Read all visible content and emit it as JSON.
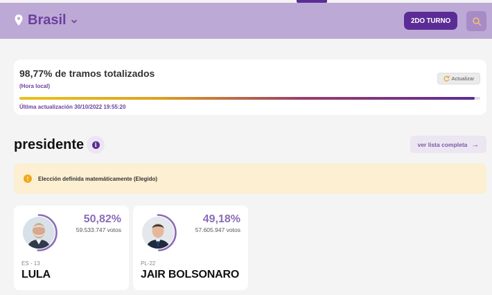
{
  "header": {
    "location": "Brasil",
    "turno_button": "2DO TURNO",
    "icons": {
      "location": "location-pin-icon",
      "dropdown": "chevron-down-icon",
      "search": "search-icon"
    }
  },
  "progress_card": {
    "title": "98,77% de tramos totalizados",
    "subtitle": "(Hora local)",
    "refresh_label": "Actualizar",
    "progress_fraction": 0.9877,
    "last_update": "Última actualización 30/10/2022 19:55:20"
  },
  "section": {
    "title": "presidente",
    "info_glyph": "i",
    "full_list_label": "ver lista completa",
    "full_list_arrow": "→"
  },
  "alert": {
    "glyph": "!",
    "text": "Elección definida matemáticamente (Elegido)"
  },
  "candidates": [
    {
      "percent": "50,82%",
      "percent_value": 50.82,
      "votes": "59.533.747 votos",
      "party": "ES - 13",
      "name": "LULA"
    },
    {
      "percent": "49,18%",
      "percent_value": 49.18,
      "votes": "57.605.947 votos",
      "party": "PL-22",
      "name": "JAIR BOLSONARO"
    }
  ],
  "colors": {
    "header_bg": "#bda9d6",
    "brand_purple": "#5b2c95",
    "accent_lilac": "#8a6bb5",
    "alert_bg": "#fcefd2",
    "alert_icon": "#f0a81a"
  }
}
